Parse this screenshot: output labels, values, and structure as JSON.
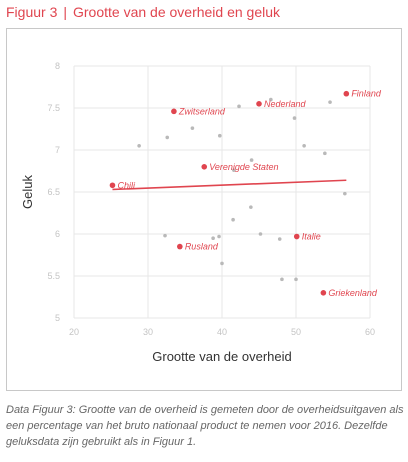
{
  "figure": {
    "label": "Figuur 3",
    "separator": "|",
    "title": "Grootte van de overheid en geluk"
  },
  "caption": "Data Figuur 3: Grootte van de overheid is gemeten door de overheidsuitgaven als een percentage van het bruto nationaal product te nemen voor 2016. Dezelfde geluksdata zijn gebruikt als in Figuur 1.",
  "colors": {
    "accent": "#e0454f",
    "points_muted": "#b9b9b9",
    "axis_text": "#c4c4c4",
    "grid": "#e7e7e7"
  },
  "chart_data": {
    "type": "scatter",
    "xlabel": "Grootte van de overheid",
    "ylabel": "Geluk",
    "xlim": [
      20,
      60
    ],
    "ylim": [
      5,
      8
    ],
    "xticks": [
      20,
      30,
      40,
      50,
      60
    ],
    "yticks": [
      5,
      5.5,
      6,
      6.5,
      7,
      7.5,
      8
    ],
    "grid": true,
    "labeled_points": [
      {
        "label": "Finland",
        "x": 56.8,
        "y": 7.67
      },
      {
        "label": "Nederland",
        "x": 45.0,
        "y": 7.55
      },
      {
        "label": "Zwitserland",
        "x": 33.5,
        "y": 7.46
      },
      {
        "label": "Verenigde Staten",
        "x": 37.6,
        "y": 6.8
      },
      {
        "label": "Chili",
        "x": 25.2,
        "y": 6.58
      },
      {
        "label": "Italie",
        "x": 50.1,
        "y": 5.97
      },
      {
        "label": "Rusland",
        "x": 34.3,
        "y": 5.85
      },
      {
        "label": "Griekenland",
        "x": 53.7,
        "y": 5.3
      }
    ],
    "other_points": [
      {
        "x": 28.8,
        "y": 7.05
      },
      {
        "x": 32.6,
        "y": 7.15
      },
      {
        "x": 36.0,
        "y": 7.26
      },
      {
        "x": 39.7,
        "y": 7.17
      },
      {
        "x": 42.3,
        "y": 7.52
      },
      {
        "x": 46.6,
        "y": 7.6
      },
      {
        "x": 49.8,
        "y": 7.38
      },
      {
        "x": 51.1,
        "y": 7.05
      },
      {
        "x": 54.6,
        "y": 7.57
      },
      {
        "x": 53.9,
        "y": 6.96
      },
      {
        "x": 56.6,
        "y": 6.48
      },
      {
        "x": 44.0,
        "y": 6.88
      },
      {
        "x": 41.6,
        "y": 6.76
      },
      {
        "x": 43.9,
        "y": 6.32
      },
      {
        "x": 41.5,
        "y": 6.17
      },
      {
        "x": 45.2,
        "y": 6.0
      },
      {
        "x": 47.8,
        "y": 5.94
      },
      {
        "x": 32.3,
        "y": 5.98
      },
      {
        "x": 38.8,
        "y": 5.95
      },
      {
        "x": 39.6,
        "y": 5.97
      },
      {
        "x": 40.0,
        "y": 5.65
      },
      {
        "x": 48.1,
        "y": 5.46
      },
      {
        "x": 50.0,
        "y": 5.46
      }
    ],
    "trendline": {
      "x": [
        25.2,
        56.8
      ],
      "y": [
        6.53,
        6.64
      ]
    }
  }
}
